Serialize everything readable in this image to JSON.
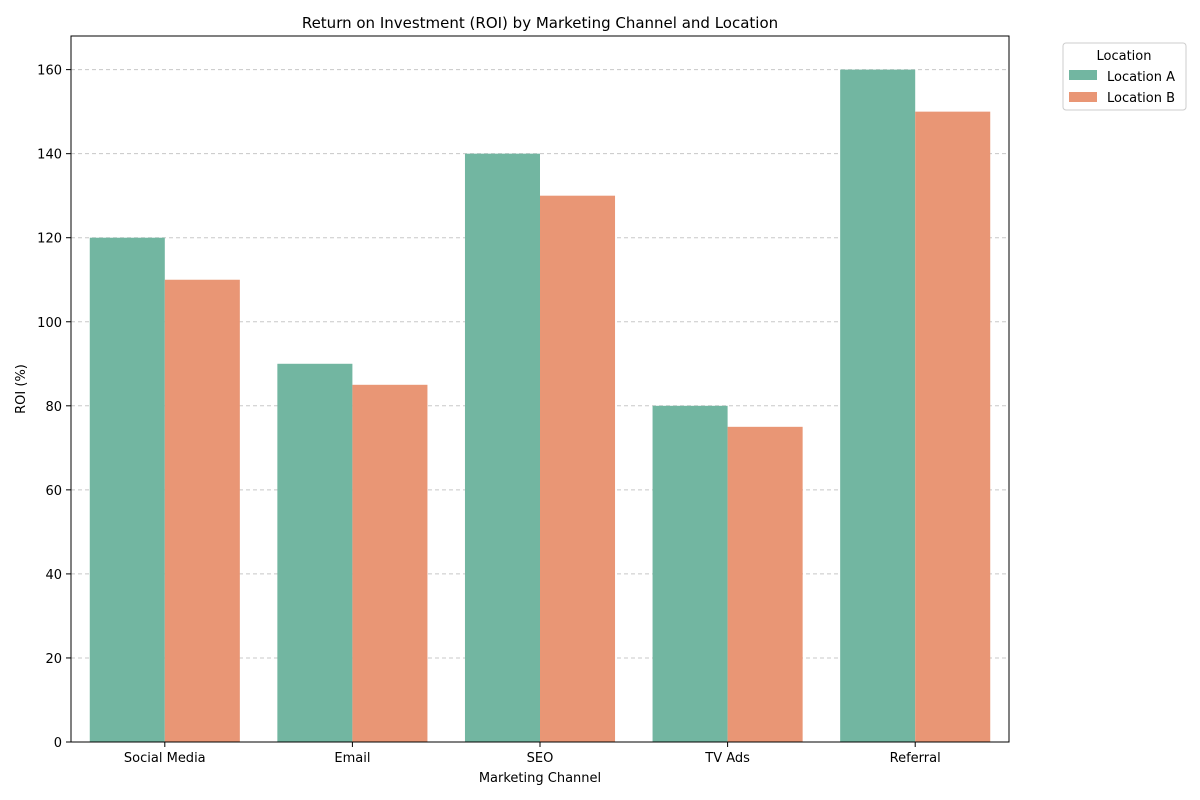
{
  "chart_data": {
    "type": "bar",
    "title": "Return on Investment (ROI) by Marketing Channel and Location",
    "xlabel": "Marketing Channel",
    "ylabel": "ROI (%)",
    "categories": [
      "Social Media",
      "Email",
      "SEO",
      "TV Ads",
      "Referral"
    ],
    "series": [
      {
        "name": "Location A",
        "values": [
          120,
          90,
          140,
          80,
          160
        ],
        "color": "#72b6a1"
      },
      {
        "name": "Location B",
        "values": [
          110,
          85,
          130,
          75,
          150
        ],
        "color": "#e99675"
      }
    ],
    "ylim": [
      0,
      168
    ],
    "yticks": [
      0,
      20,
      40,
      60,
      80,
      100,
      120,
      140,
      160
    ],
    "grid": "horizontal dashed",
    "legend": {
      "title": "Location",
      "placement": "outside top-right"
    }
  }
}
